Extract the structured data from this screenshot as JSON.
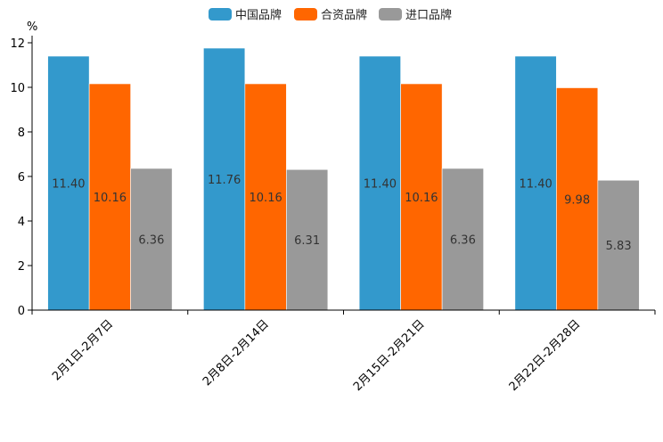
{
  "chart_data": {
    "type": "bar",
    "title": "",
    "xlabel": "",
    "ylabel": "%",
    "ylim": [
      0,
      12
    ],
    "yticks": [
      0,
      2,
      4,
      6,
      8,
      10,
      12
    ],
    "grid": false,
    "legend_position": "top-center",
    "categories": [
      "2月1日-2月7日",
      "2月8日-2月14日",
      "2月15日-2月21日",
      "2月22日-2月28日"
    ],
    "series": [
      {
        "name": "中国品牌",
        "color": "#3399CC",
        "values": [
          11.4,
          11.76,
          11.4,
          11.4
        ],
        "labels": [
          "11.40",
          "11.76",
          "11.40",
          "11.40"
        ]
      },
      {
        "name": "合资品牌",
        "color": "#FF6600",
        "values": [
          10.16,
          10.16,
          10.16,
          9.98
        ],
        "labels": [
          "10.16",
          "10.16",
          "10.16",
          "9.98"
        ]
      },
      {
        "name": "进口品牌",
        "color": "#999999",
        "values": [
          6.36,
          6.31,
          6.36,
          5.83
        ],
        "labels": [
          "6.36",
          "6.31",
          "6.36",
          "5.83"
        ]
      }
    ]
  }
}
